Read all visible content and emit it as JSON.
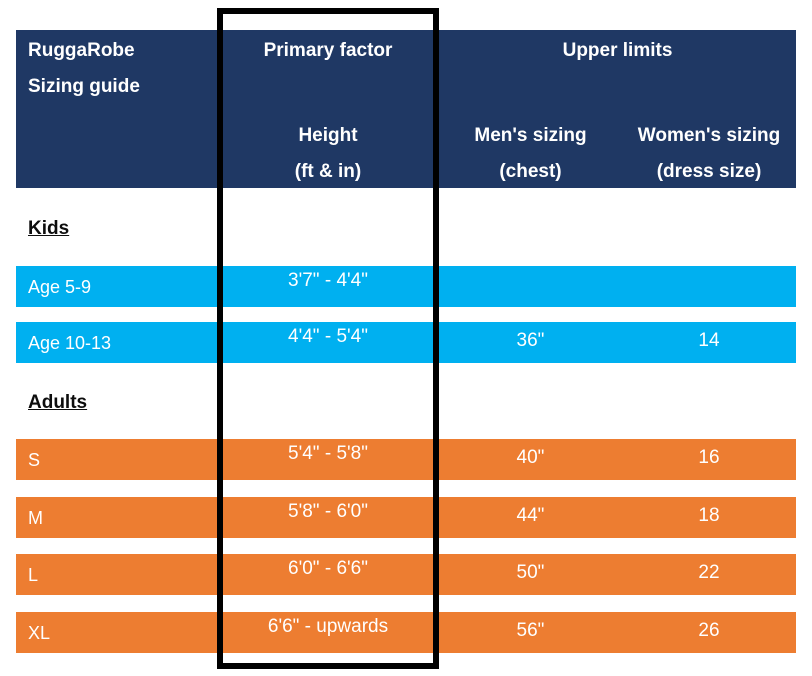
{
  "header": {
    "title_line1": "RuggaRobe",
    "title_line2": "Sizing guide",
    "primary_factor": "Primary factor",
    "upper_limits": "Upper limits",
    "height": {
      "label": "Height",
      "unit": "(ft & in)"
    },
    "mens": {
      "label": "Men's sizing",
      "unit": "(chest)"
    },
    "womens": {
      "label": "Women's sizing",
      "unit": "(dress size)"
    }
  },
  "sections": [
    {
      "label": "Kids",
      "rows": [
        {
          "label": "Age 5-9",
          "height": "3'7\" - 4'4\"",
          "mens": "",
          "womens": ""
        },
        {
          "label": "Age 10-13",
          "height": "4'4\" - 5'4\"",
          "mens": "36\"",
          "womens": "14"
        }
      ]
    },
    {
      "label": "Adults",
      "rows": [
        {
          "label": "S",
          "height": "5'4\" - 5'8\"",
          "mens": "40\"",
          "womens": "16"
        },
        {
          "label": "M",
          "height": "5'8\" - 6'0\"",
          "mens": "44\"",
          "womens": "18"
        },
        {
          "label": "L",
          "height": "6'0\" - 6'6\"",
          "mens": "50\"",
          "womens": "22"
        },
        {
          "label": "XL",
          "height": "6'6\" - upwards",
          "mens": "56\"",
          "womens": "26"
        }
      ]
    }
  ],
  "colors": {
    "navy": "#1F3864",
    "blue": "#00B0F0",
    "orange": "#ED7D31",
    "box": "#000000",
    "text_light": "#FFFFFF"
  }
}
